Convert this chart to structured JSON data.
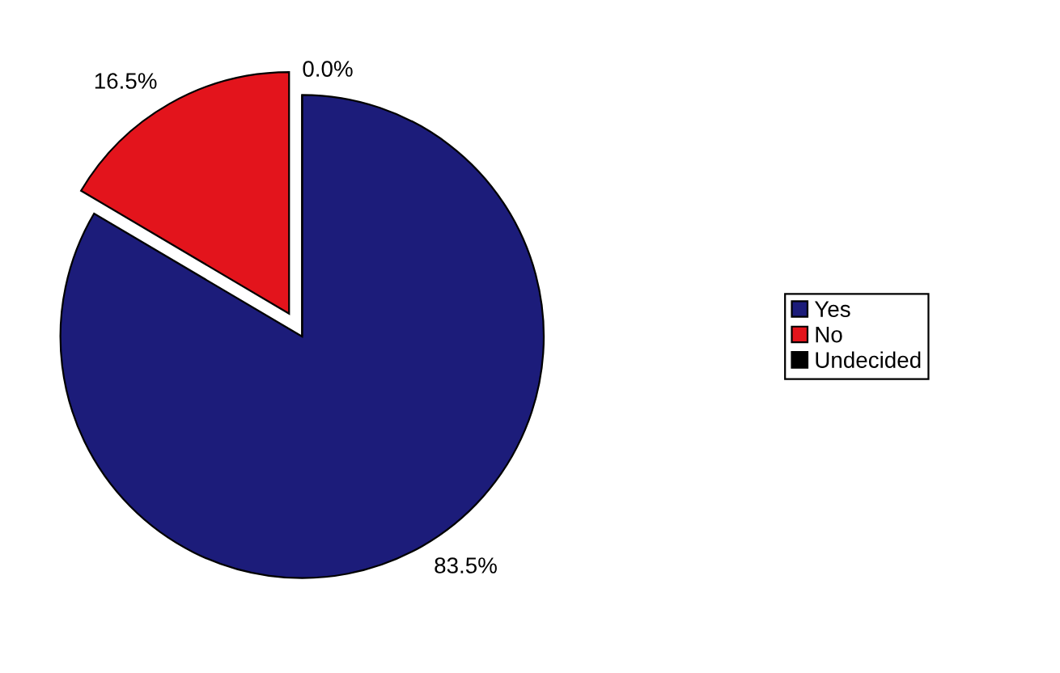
{
  "chart_data": {
    "type": "pie",
    "categories": [
      "Yes",
      "No",
      "Undecided"
    ],
    "values": [
      83.5,
      16.5,
      0.0
    ],
    "colors": [
      "#1c1c7a",
      "#e3141c",
      "#000000"
    ],
    "value_labels": [
      "83.5%",
      "16.5%",
      "0.0%"
    ],
    "legend": "right"
  }
}
